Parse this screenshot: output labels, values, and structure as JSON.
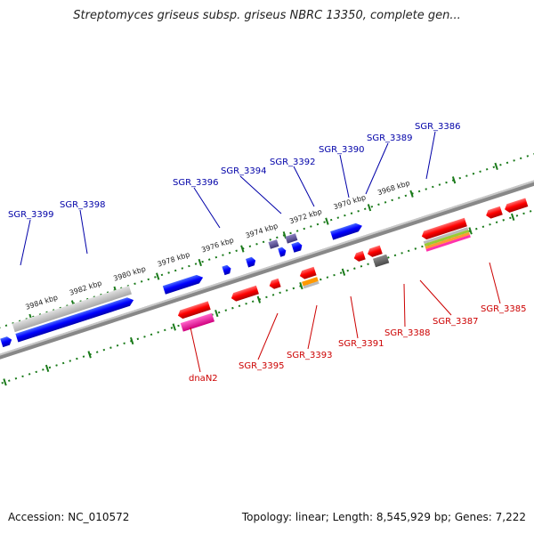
{
  "header": {
    "title": "Streptomyces griseus subsp. griseus NBRC 13350, complete gen..."
  },
  "footer": {
    "accession": "Accession: NC_010572",
    "summary": "Topology: linear; Length: 8,545,929 bp; Genes: 7,222"
  },
  "scale_labels": [
    "3984 kbp",
    "3982 kbp",
    "3980 kbp",
    "3978 kbp",
    "3976 kbp",
    "3974 kbp",
    "3972 kbp",
    "3970 kbp",
    "3968 kbp"
  ],
  "genes_top": [
    "SGR_3399",
    "SGR_3398",
    "SGR_3396",
    "SGR_3394",
    "SGR_3392",
    "SGR_3390",
    "SGR_3389",
    "SGR_3386"
  ],
  "genes_bottom": [
    "dnaN2",
    "SGR_3395",
    "SGR_3393",
    "SGR_3391",
    "SGR_3388",
    "SGR_3387",
    "SGR_3385"
  ],
  "colors": {
    "forward_gene": "#0000ff",
    "reverse_gene": "#ff0000",
    "top_label": "#0000a8",
    "bottom_label": "#cc0000",
    "tick": "#1a7a1a",
    "backbone": "#888888"
  }
}
